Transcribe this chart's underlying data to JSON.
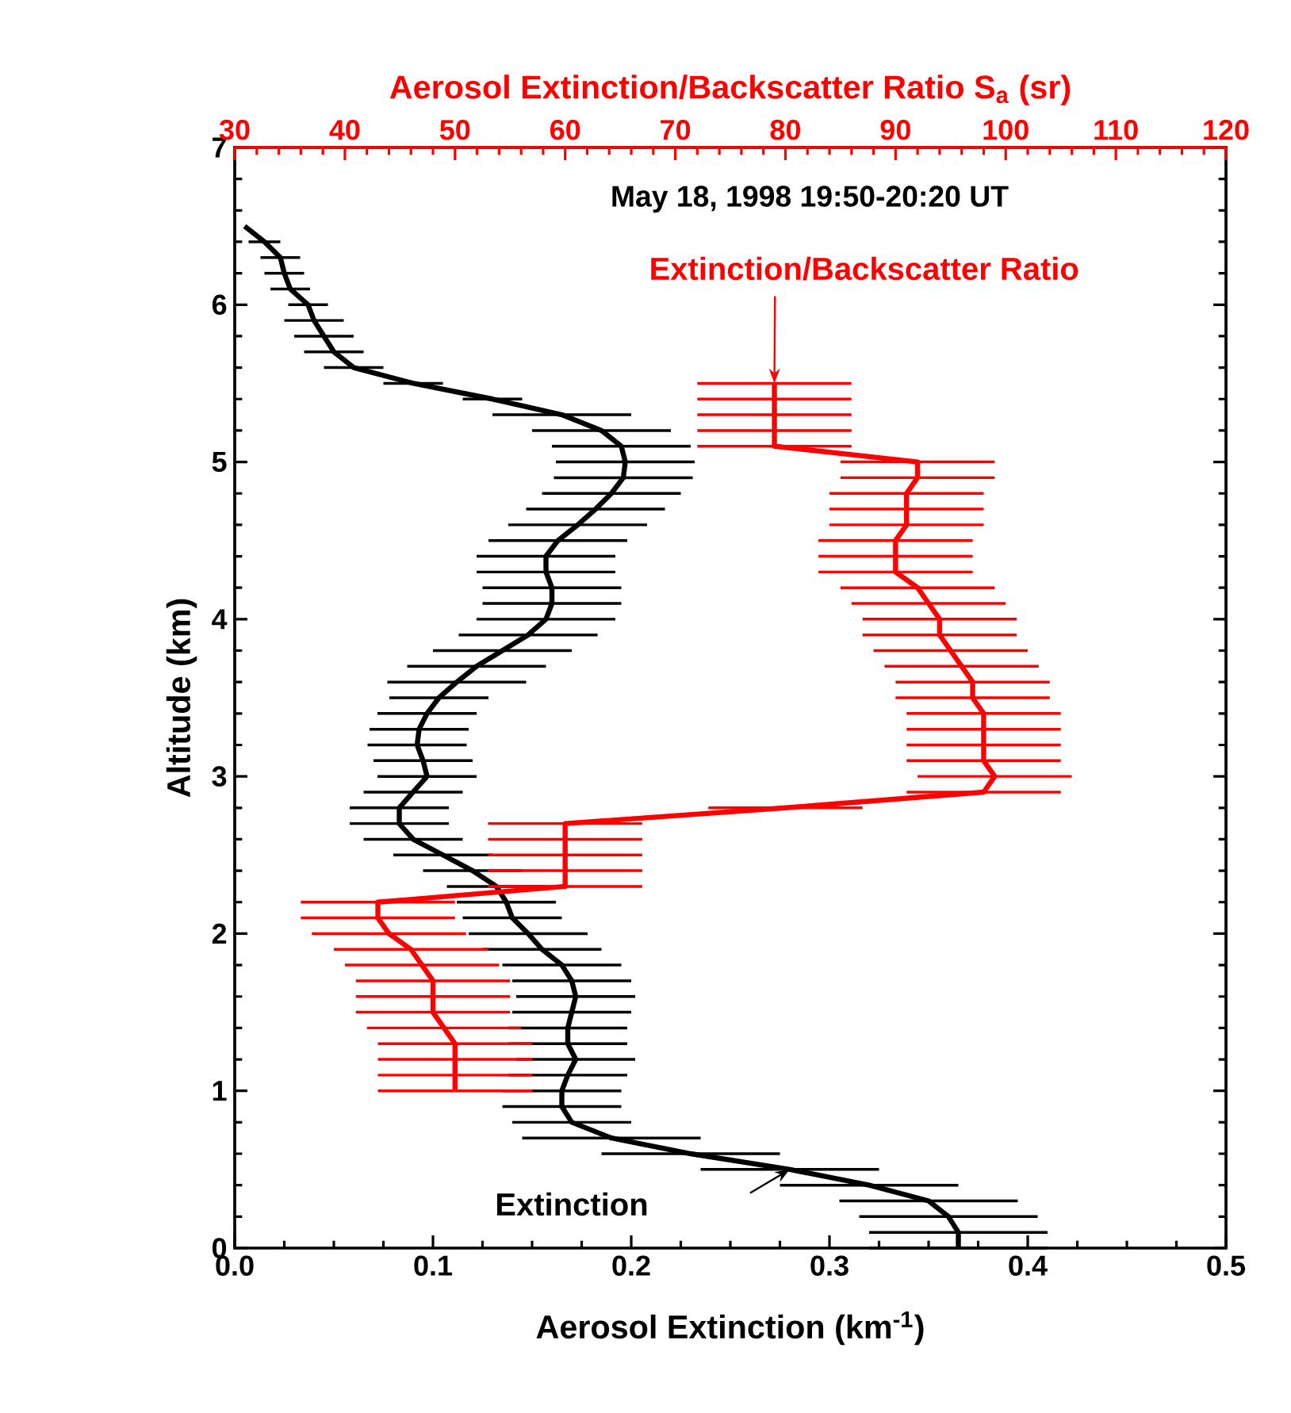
{
  "chart_data": {
    "type": "line",
    "xlabel": "Aerosol Extinction (km$^{-1}$)",
    "ylabel": "Altitude (km)",
    "x2label": "Aerosol Extinction/Backscatter Ratio S$_{a}$ (sr)",
    "annotations": [
      "May 18, 1998 19:50-20:20 UT"
    ],
    "xlim": [
      0,
      0.5
    ],
    "xticks": [
      {
        "value": 0,
        "label": "0.0"
      },
      0.1,
      0.2,
      0.3,
      0.4,
      0.5
    ],
    "x2lim": [
      30,
      120
    ],
    "x2ticks": [
      30,
      40,
      50,
      60,
      70,
      80,
      90,
      100,
      110,
      120
    ],
    "ylim": [
      0,
      7
    ],
    "yticks": [
      0,
      1,
      2,
      3,
      4,
      5,
      6,
      7
    ],
    "series": [
      {
        "name": "Extinction",
        "color": "#000000",
        "x": [
          0.365,
          0.365,
          0.36,
          0.35,
          0.32,
          0.28,
          0.23,
          0.19,
          0.17,
          0.165,
          0.165,
          0.168,
          0.172,
          0.168,
          0.168,
          0.17,
          0.172,
          0.17,
          0.165,
          0.155,
          0.148,
          0.14,
          0.137,
          0.132,
          0.12,
          0.105,
          0.09,
          0.083,
          0.083,
          0.09,
          0.097,
          0.095,
          0.092,
          0.093,
          0.097,
          0.103,
          0.112,
          0.122,
          0.135,
          0.148,
          0.157,
          0.16,
          0.16,
          0.157,
          0.157,
          0.163,
          0.173,
          0.182,
          0.19,
          0.196,
          0.197,
          0.195,
          0.185,
          0.165,
          0.13,
          0.09,
          0.06,
          0.05,
          0.045,
          0.04,
          0.037,
          0.028,
          0.025,
          0.023,
          0.015,
          0.005
        ],
        "values": [
          0,
          0.1,
          0.2,
          0.3,
          0.4,
          0.5,
          0.6,
          0.7,
          0.8,
          0.9,
          1.0,
          1.1,
          1.2,
          1.3,
          1.4,
          1.5,
          1.6,
          1.7,
          1.8,
          1.9,
          2.0,
          2.1,
          2.2,
          2.3,
          2.4,
          2.5,
          2.6,
          2.7,
          2.8,
          2.9,
          3.0,
          3.1,
          3.2,
          3.3,
          3.4,
          3.5,
          3.6,
          3.7,
          3.8,
          3.9,
          4.0,
          4.1,
          4.2,
          4.3,
          4.4,
          4.5,
          4.6,
          4.7,
          4.8,
          4.9,
          5.0,
          5.1,
          5.2,
          5.3,
          5.4,
          5.5,
          5.6,
          5.7,
          5.8,
          5.9,
          6.0,
          6.1,
          6.2,
          6.3,
          6.4,
          6.5
        ],
        "xerrors": [
          0.045,
          0.045,
          0.045,
          0.045,
          0.045,
          0.045,
          0.045,
          0.045,
          0.03,
          0.03,
          0.03,
          0.03,
          0.03,
          0.03,
          0.03,
          0.03,
          0.03,
          0.03,
          0.03,
          0.03,
          0.03,
          0.025,
          0.025,
          0.025,
          0.025,
          0.025,
          0.025,
          0.025,
          0.025,
          0.025,
          0.025,
          0.025,
          0.025,
          0.025,
          0.025,
          0.025,
          0.035,
          0.035,
          0.035,
          0.035,
          0.035,
          0.035,
          0.035,
          0.035,
          0.035,
          0.035,
          0.035,
          0.035,
          0.035,
          0.035,
          0.035,
          0.035,
          0.035,
          0.035,
          0.015,
          0.015,
          0.015,
          0.015,
          0.015,
          0.015,
          0.01,
          0.01,
          0.01,
          0.01,
          0.008,
          null
        ]
      },
      {
        "name": "Extinction/Backscatter Ratio",
        "color": "#ff0000",
        "axis": "x2",
        "x": [
          50,
          50,
          50,
          50,
          49,
          48,
          48,
          48,
          47,
          46,
          44,
          43,
          43,
          60,
          60,
          60,
          60,
          60,
          80,
          98,
          99,
          98,
          98,
          98,
          98,
          97,
          97,
          96,
          95,
          94,
          94,
          93,
          92,
          90,
          90,
          90,
          91,
          91,
          91,
          92,
          92,
          79,
          79,
          79,
          79,
          79
        ],
        "values": [
          1.0,
          1.1,
          1.2,
          1.3,
          1.4,
          1.5,
          1.6,
          1.7,
          1.8,
          1.9,
          2.0,
          2.1,
          2.2,
          2.3,
          2.4,
          2.5,
          2.6,
          2.7,
          2.8,
          2.9,
          3.0,
          3.1,
          3.2,
          3.3,
          3.4,
          3.5,
          3.6,
          3.7,
          3.8,
          3.9,
          4.0,
          4.1,
          4.2,
          4.3,
          4.4,
          4.5,
          4.6,
          4.7,
          4.8,
          4.9,
          5.0,
          5.1,
          5.2,
          5.3,
          5.4,
          5.5
        ],
        "xerrors": [
          7,
          7,
          7,
          7,
          7,
          7,
          7,
          7,
          7,
          7,
          7,
          7,
          7,
          7,
          7,
          7,
          7,
          7,
          7,
          7,
          7,
          7,
          7,
          7,
          7,
          7,
          7,
          7,
          7,
          7,
          7,
          7,
          7,
          7,
          7,
          7,
          7,
          7,
          7,
          7,
          7,
          7,
          7,
          7,
          7,
          7
        ]
      }
    ]
  }
}
